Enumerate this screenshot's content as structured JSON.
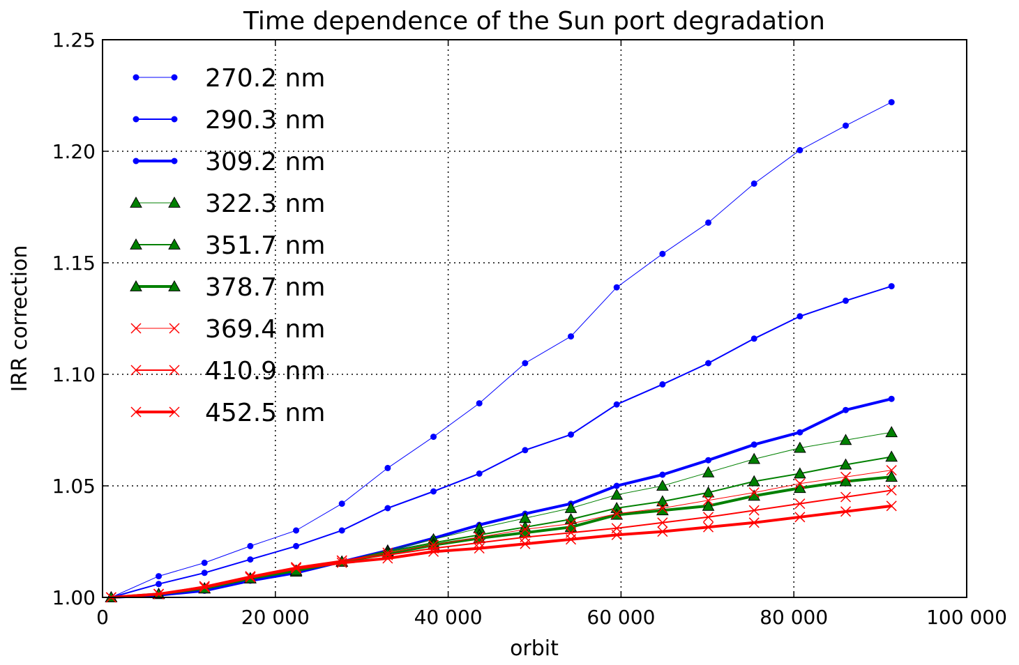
{
  "chart_data": {
    "type": "line",
    "title": "Time dependence of the Sun port degradation",
    "xlabel": "orbit",
    "ylabel": "IRR correction",
    "xlim": [
      0,
      100000
    ],
    "ylim": [
      1.0,
      1.25
    ],
    "xticks": [
      0,
      20000,
      40000,
      60000,
      80000,
      100000
    ],
    "xtick_labels": [
      "0",
      "20 000",
      "40 000",
      "60 000",
      "80 000",
      "100 000"
    ],
    "yticks": [
      1.0,
      1.05,
      1.1,
      1.15,
      1.2,
      1.25
    ],
    "ytick_labels": [
      "1.00",
      "1.05",
      "1.10",
      "1.15",
      "1.20",
      "1.25"
    ],
    "grid": true,
    "legend_position": "top-left",
    "x": [
      1000,
      6500,
      11800,
      17100,
      22400,
      27700,
      33000,
      38300,
      43600,
      48900,
      54200,
      59500,
      64800,
      70100,
      75400,
      80700,
      86000,
      91300
    ],
    "series": [
      {
        "name": "270.2 nm",
        "color": "#0000ff",
        "marker": "circle",
        "linewidth": 1,
        "values": [
          1.0,
          1.0095,
          1.0155,
          1.023,
          1.03,
          1.042,
          1.058,
          1.072,
          1.087,
          1.105,
          1.117,
          1.139,
          1.154,
          1.168,
          1.1855,
          1.2005,
          1.2115,
          1.222
        ]
      },
      {
        "name": "290.3 nm",
        "color": "#0000ff",
        "marker": "circle",
        "linewidth": 2,
        "values": [
          1.0,
          1.006,
          1.011,
          1.017,
          1.023,
          1.03,
          1.04,
          1.0475,
          1.0555,
          1.066,
          1.073,
          1.0865,
          1.0955,
          1.105,
          1.116,
          1.126,
          1.133,
          1.1395
        ]
      },
      {
        "name": "309.2 nm",
        "color": "#0000ff",
        "marker": "circle",
        "linewidth": 4,
        "values": [
          1.0,
          1.001,
          1.003,
          1.0075,
          1.011,
          1.016,
          1.021,
          1.0265,
          1.0325,
          1.0375,
          1.042,
          1.05,
          1.055,
          1.0615,
          1.0685,
          1.074,
          1.084,
          1.089
        ]
      },
      {
        "name": "322.3 nm",
        "color": "#008000",
        "marker": "triangle",
        "linewidth": 1,
        "values": [
          1.0,
          1.0015,
          1.004,
          1.0085,
          1.0115,
          1.016,
          1.021,
          1.026,
          1.031,
          1.0355,
          1.04,
          1.046,
          1.05,
          1.056,
          1.062,
          1.067,
          1.0705,
          1.074
        ]
      },
      {
        "name": "351.7 nm",
        "color": "#008000",
        "marker": "triangle",
        "linewidth": 2,
        "values": [
          1.0,
          1.0015,
          1.004,
          1.0085,
          1.012,
          1.016,
          1.0205,
          1.0245,
          1.028,
          1.0315,
          1.035,
          1.04,
          1.043,
          1.047,
          1.052,
          1.0555,
          1.0595,
          1.063
        ]
      },
      {
        "name": "378.7 nm",
        "color": "#008000",
        "marker": "triangle",
        "linewidth": 4,
        "values": [
          1.0,
          1.0015,
          1.004,
          1.0085,
          1.012,
          1.016,
          1.0195,
          1.0235,
          1.0265,
          1.029,
          1.0315,
          1.037,
          1.039,
          1.041,
          1.0455,
          1.049,
          1.052,
          1.054
        ]
      },
      {
        "name": "369.4 nm",
        "color": "#ff0000",
        "marker": "x",
        "linewidth": 1,
        "values": [
          1.0,
          1.0015,
          1.005,
          1.009,
          1.0135,
          1.0165,
          1.02,
          1.0235,
          1.027,
          1.0305,
          1.033,
          1.0375,
          1.04,
          1.0435,
          1.047,
          1.051,
          1.054,
          1.057
        ]
      },
      {
        "name": "410.9 nm",
        "color": "#ff0000",
        "marker": "x",
        "linewidth": 2,
        "values": [
          1.0,
          1.0015,
          1.005,
          1.0095,
          1.0135,
          1.0165,
          1.019,
          1.022,
          1.0245,
          1.027,
          1.029,
          1.031,
          1.0335,
          1.036,
          1.039,
          1.042,
          1.045,
          1.048
        ]
      },
      {
        "name": "452.5 nm",
        "color": "#ff0000",
        "marker": "x",
        "linewidth": 4,
        "values": [
          1.0,
          1.0015,
          1.0045,
          1.009,
          1.013,
          1.0155,
          1.0175,
          1.0205,
          1.022,
          1.024,
          1.026,
          1.028,
          1.0295,
          1.0315,
          1.0335,
          1.036,
          1.0385,
          1.041
        ]
      }
    ]
  }
}
